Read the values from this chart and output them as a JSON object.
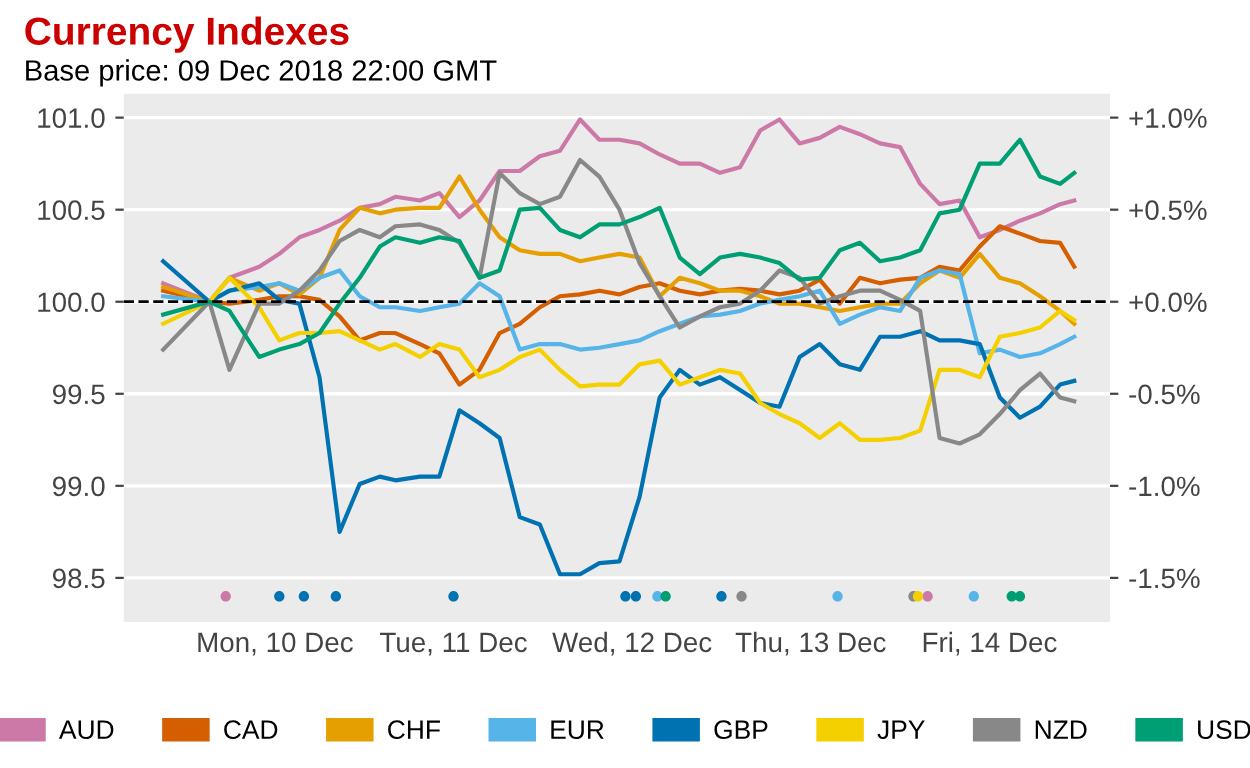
{
  "chart_data": {
    "type": "line",
    "title": "Currency Indexes",
    "subtitle": "Base price: 09 Dec 2018 22:00 GMT",
    "x": [
      "2018-12-09T21:00",
      "2018-12-10T03:12",
      "2018-12-10T05:54",
      "2018-12-10T09:54",
      "2018-12-10T12:36",
      "2018-12-10T15:18",
      "2018-12-10T18:00",
      "2018-12-10T20:42",
      "2018-12-10T23:24",
      "2018-12-11T02:06",
      "2018-12-11T04:12",
      "2018-12-11T07:30",
      "2018-12-11T10:06",
      "2018-12-11T12:48",
      "2018-12-11T15:30",
      "2018-12-11T18:12",
      "2018-12-11T20:54",
      "2018-12-11T23:36",
      "2018-12-12T02:18",
      "2018-12-12T05:00",
      "2018-12-12T07:36",
      "2018-12-12T10:18",
      "2018-12-12T13:00",
      "2018-12-12T15:42",
      "2018-12-12T18:24",
      "2018-12-12T21:06",
      "2018-12-12T23:48",
      "2018-12-13T02:30",
      "2018-12-13T05:12",
      "2018-12-13T07:48",
      "2018-12-13T10:30",
      "2018-12-13T13:12",
      "2018-12-13T15:54",
      "2018-12-13T18:36",
      "2018-12-13T21:18",
      "2018-12-14T00:00",
      "2018-12-14T02:42",
      "2018-12-14T05:18",
      "2018-12-14T08:00",
      "2018-12-14T10:42",
      "2018-12-14T13:24",
      "2018-12-14T16:06",
      "2018-12-14T18:48",
      "2018-12-14T21:30",
      "2018-12-14T23:24"
    ],
    "xlim": [
      "2018-12-09T15:42",
      "2018-12-15T04:12"
    ],
    "xticks": [
      {
        "value": "2018-12-10T12:00",
        "label": "Mon, 10 Dec"
      },
      {
        "value": "2018-12-11T12:00",
        "label": "Tue, 11 Dec"
      },
      {
        "value": "2018-12-12T12:00",
        "label": "Wed, 12 Dec"
      },
      {
        "value": "2018-12-13T12:00",
        "label": "Thu, 13 Dec"
      },
      {
        "value": "2018-12-14T12:00",
        "label": "Fri, 14 Dec"
      }
    ],
    "ylim": [
      98.26,
      101.13
    ],
    "yticks": [
      {
        "value": 98.5,
        "label": "98.5"
      },
      {
        "value": 99.0,
        "label": "99.0"
      },
      {
        "value": 99.5,
        "label": "99.5"
      },
      {
        "value": 100.0,
        "label": "100.0"
      },
      {
        "value": 100.5,
        "label": "100.5"
      },
      {
        "value": 101.0,
        "label": "101.0"
      }
    ],
    "y2lim": [
      -1.74,
      1.13
    ],
    "y2ticks": [
      {
        "value": -1.5,
        "label": "-1.5%"
      },
      {
        "value": -1.0,
        "label": "-1.0%"
      },
      {
        "value": -0.5,
        "label": "-0.5%"
      },
      {
        "value": 0.0,
        "label": "+0.0%"
      },
      {
        "value": 0.5,
        "label": "+0.5%"
      },
      {
        "value": 1.0,
        "label": "+1.0%"
      }
    ],
    "grid": "y",
    "legend": "bottom",
    "line_style": "solid",
    "marker": "none",
    "ref_lines": [
      {
        "axis": "y",
        "value": 100.0,
        "color": "#000000",
        "line_style": "dashed"
      }
    ],
    "series": [
      {
        "name": "AUD",
        "color": "#cc79a7",
        "values": [
          100.1,
          100.0,
          100.13,
          100.19,
          100.26,
          100.35,
          100.39,
          100.44,
          100.51,
          100.53,
          100.57,
          100.55,
          100.59,
          100.46,
          100.55,
          100.71,
          100.71,
          100.79,
          100.82,
          100.99,
          100.88,
          100.88,
          100.86,
          100.8,
          100.75,
          100.75,
          100.7,
          100.73,
          100.93,
          100.99,
          100.86,
          100.89,
          100.95,
          100.91,
          100.86,
          100.84,
          100.64,
          100.53,
          100.55,
          100.35,
          100.39,
          100.44,
          100.48,
          100.53,
          100.55
        ]
      },
      {
        "name": "CAD",
        "color": "#d55e00",
        "values": [
          100.06,
          100.0,
          99.99,
          100.01,
          100.03,
          100.03,
          100.01,
          99.92,
          99.79,
          99.83,
          99.83,
          99.77,
          99.72,
          99.55,
          99.63,
          99.83,
          99.88,
          99.97,
          100.03,
          100.04,
          100.06,
          100.04,
          100.08,
          100.1,
          100.06,
          100.04,
          100.06,
          100.07,
          100.06,
          100.04,
          100.06,
          100.12,
          99.99,
          100.13,
          100.1,
          100.12,
          100.13,
          100.19,
          100.17,
          100.3,
          100.41,
          100.37,
          100.33,
          100.32,
          100.19
        ]
      },
      {
        "name": "CHF",
        "color": "#e69f00",
        "values": [
          100.08,
          100.0,
          100.13,
          100.06,
          100.1,
          100.04,
          100.13,
          100.39,
          100.51,
          100.48,
          100.5,
          100.51,
          100.51,
          100.68,
          100.5,
          100.35,
          100.28,
          100.26,
          100.26,
          100.22,
          100.24,
          100.26,
          100.24,
          100.03,
          100.13,
          100.1,
          100.06,
          100.06,
          100.03,
          99.99,
          99.99,
          99.97,
          99.95,
          99.97,
          99.99,
          99.99,
          100.1,
          100.17,
          100.13,
          100.26,
          100.13,
          100.1,
          100.03,
          99.95,
          99.88
        ]
      },
      {
        "name": "EUR",
        "color": "#56b4e9",
        "values": [
          100.03,
          100.0,
          100.06,
          100.08,
          100.1,
          100.06,
          100.13,
          100.17,
          100.03,
          99.97,
          99.97,
          99.95,
          99.97,
          99.99,
          100.1,
          100.03,
          99.74,
          99.77,
          99.77,
          99.74,
          99.75,
          99.77,
          99.79,
          99.84,
          99.88,
          99.92,
          99.93,
          99.95,
          99.99,
          100.01,
          100.03,
          100.06,
          99.88,
          99.93,
          99.97,
          99.95,
          100.13,
          100.17,
          100.15,
          99.72,
          99.74,
          99.7,
          99.72,
          99.77,
          99.81
        ]
      },
      {
        "name": "GBP",
        "color": "#0072b2",
        "values": [
          100.22,
          100.0,
          100.06,
          100.1,
          100.01,
          99.99,
          99.59,
          98.75,
          99.01,
          99.05,
          99.03,
          99.05,
          99.05,
          99.41,
          99.34,
          99.26,
          98.83,
          98.79,
          98.52,
          98.52,
          98.58,
          98.59,
          98.94,
          99.48,
          99.63,
          99.55,
          99.59,
          99.52,
          99.45,
          99.43,
          99.7,
          99.77,
          99.66,
          99.63,
          99.81,
          99.81,
          99.84,
          99.79,
          99.79,
          99.77,
          99.48,
          99.37,
          99.43,
          99.55,
          99.57
        ]
      },
      {
        "name": "JPY",
        "color": "#f5d000",
        "values": [
          99.88,
          100.0,
          100.13,
          99.97,
          99.79,
          99.83,
          99.83,
          99.84,
          99.79,
          99.74,
          99.77,
          99.7,
          99.77,
          99.74,
          99.59,
          99.63,
          99.7,
          99.74,
          99.63,
          99.54,
          99.55,
          99.55,
          99.66,
          99.68,
          99.55,
          99.59,
          99.63,
          99.61,
          99.45,
          99.39,
          99.34,
          99.26,
          99.34,
          99.25,
          99.25,
          99.26,
          99.3,
          99.63,
          99.63,
          99.59,
          99.81,
          99.83,
          99.86,
          99.95,
          99.9
        ]
      },
      {
        "name": "NZD",
        "color": "#888888",
        "values": [
          99.74,
          100.0,
          99.63,
          99.99,
          99.99,
          100.06,
          100.17,
          100.33,
          100.39,
          100.35,
          100.41,
          100.42,
          100.39,
          100.32,
          100.13,
          100.7,
          100.59,
          100.53,
          100.57,
          100.77,
          100.68,
          100.5,
          100.21,
          100.03,
          99.86,
          99.92,
          99.97,
          99.99,
          100.06,
          100.17,
          100.13,
          99.99,
          100.03,
          100.06,
          100.06,
          100.01,
          99.95,
          99.26,
          99.23,
          99.28,
          99.39,
          99.52,
          99.61,
          99.48,
          99.46
        ]
      },
      {
        "name": "USD",
        "color": "#009e73",
        "values": [
          99.93,
          100.0,
          99.95,
          99.7,
          99.74,
          99.77,
          99.83,
          99.99,
          100.13,
          100.3,
          100.35,
          100.32,
          100.35,
          100.33,
          100.13,
          100.17,
          100.5,
          100.51,
          100.39,
          100.35,
          100.42,
          100.42,
          100.46,
          100.51,
          100.24,
          100.15,
          100.24,
          100.26,
          100.24,
          100.21,
          100.12,
          100.13,
          100.28,
          100.32,
          100.22,
          100.24,
          100.28,
          100.48,
          100.5,
          100.75,
          100.75,
          100.88,
          100.68,
          100.64,
          100.7
        ]
      },
      {
        "type": "scatter",
        "marker": "circle",
        "color": "#cc79a7",
        "x": [
          "2018-12-10T05:24",
          "2018-12-14T03:42"
        ],
        "values": [
          98.4,
          98.4
        ]
      },
      {
        "type": "scatter",
        "marker": "circle",
        "color": "#0072b2",
        "x": [
          "2018-12-10T12:36",
          "2018-12-10T15:54",
          "2018-12-10T20:12",
          "2018-12-11T12:00",
          "2018-12-12T11:06",
          "2018-12-12T12:30",
          "2018-12-13T00:00"
        ],
        "values": [
          98.4,
          98.4,
          98.4,
          98.4,
          98.4,
          98.4,
          98.4
        ]
      },
      {
        "type": "scatter",
        "marker": "circle",
        "color": "#56b4e9",
        "x": [
          "2018-12-12T15:24",
          "2018-12-13T15:36",
          "2018-12-14T09:54"
        ],
        "values": [
          98.4,
          98.4,
          98.4
        ]
      },
      {
        "type": "scatter",
        "marker": "circle",
        "color": "#009e73",
        "x": [
          "2018-12-12T16:30",
          "2018-12-14T15:00",
          "2018-12-14T16:06"
        ],
        "values": [
          98.4,
          98.4,
          98.4
        ]
      },
      {
        "type": "scatter",
        "marker": "circle",
        "color": "#888888",
        "x": [
          "2018-12-13T02:42",
          "2018-12-14T01:48"
        ],
        "values": [
          98.4,
          98.4
        ]
      },
      {
        "type": "scatter",
        "marker": "circle",
        "color": "#f5d000",
        "x": [
          "2018-12-14T02:24"
        ],
        "values": [
          98.4
        ]
      }
    ]
  }
}
